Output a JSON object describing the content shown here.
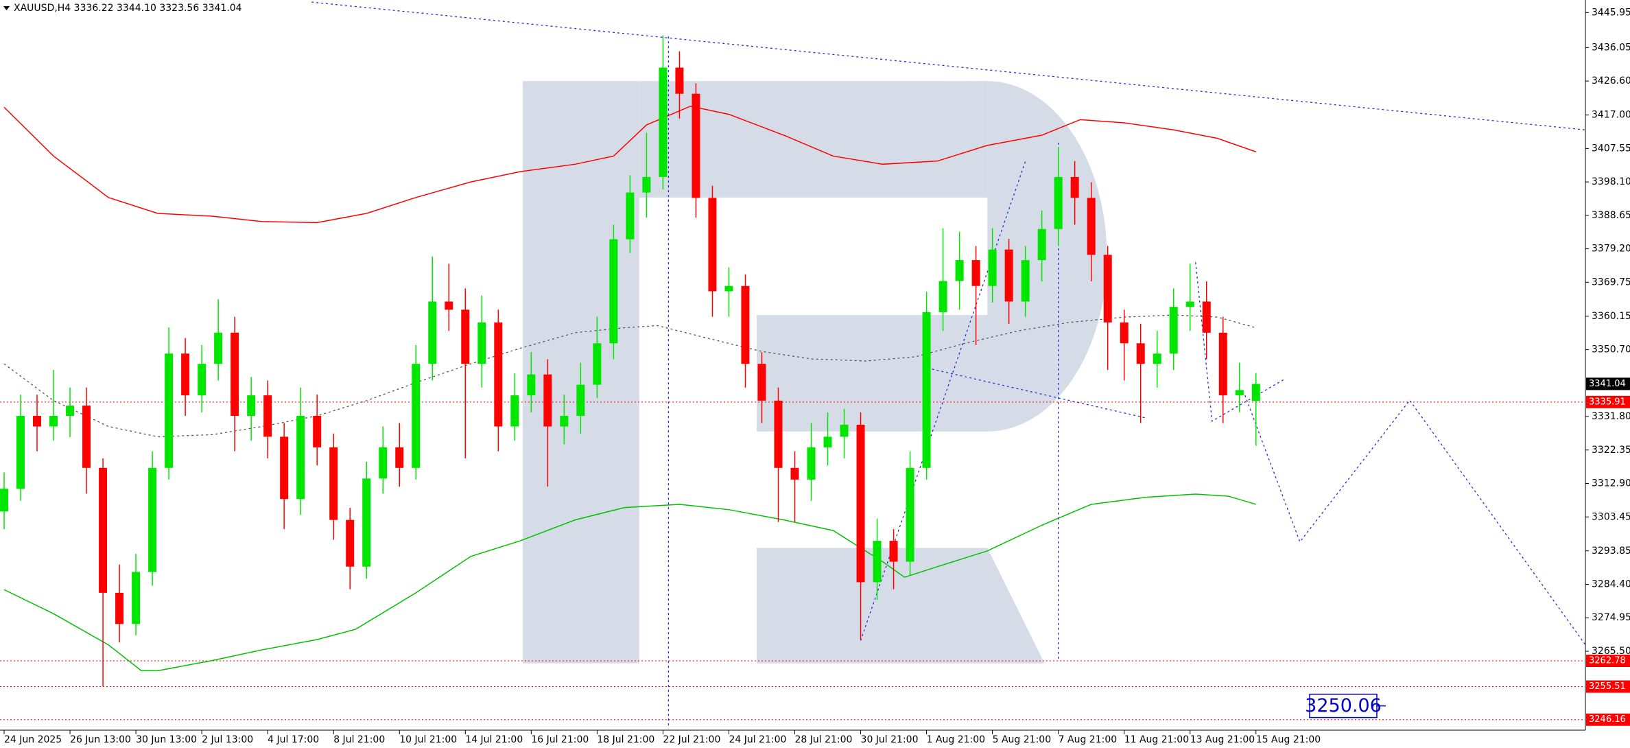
{
  "chart_data": {
    "type": "candlestick",
    "title": "XAUUSD,H4  3336.22 3344.10 3323.56 3341.04",
    "bull_color": "#00e600",
    "bear_color": "#ff0000",
    "xlim": [
      0,
      288
    ],
    "ylim": [
      3243.2,
      3449.5
    ],
    "xticks": [
      {
        "value": 0,
        "label": "24 Jun 2025"
      },
      {
        "value": 12,
        "label": "26 Jun 13:00"
      },
      {
        "value": 24,
        "label": "30 Jun 13:00"
      },
      {
        "value": 36,
        "label": "2 Jul 13:00"
      },
      {
        "value": 48,
        "label": "4 Jul 17:00"
      },
      {
        "value": 60,
        "label": "8 Jul 21:00"
      },
      {
        "value": 72,
        "label": "10 Jul 21:00"
      },
      {
        "value": 84,
        "label": "14 Jul 21:00"
      },
      {
        "value": 96,
        "label": "16 Jul 21:00"
      },
      {
        "value": 108,
        "label": "18 Jul 21:00"
      },
      {
        "value": 120,
        "label": "22 Jul 21:00"
      },
      {
        "value": 132,
        "label": "24 Jul 21:00"
      },
      {
        "value": 144,
        "label": "28 Jul 21:00"
      },
      {
        "value": 156,
        "label": "30 Jul 21:00"
      },
      {
        "value": 168,
        "label": "1 Aug 21:00"
      },
      {
        "value": 180,
        "label": "5 Aug 21:00"
      },
      {
        "value": 192,
        "label": "7 Aug 21:00"
      },
      {
        "value": 204,
        "label": "11 Aug 21:00"
      },
      {
        "value": 216,
        "label": "13 Aug 21:00"
      },
      {
        "value": 228,
        "label": "15 Aug 21:00"
      }
    ],
    "yticks": [
      3445.95,
      3436.05,
      {
        "value": 3426.6,
        "label": "3426.60"
      },
      {
        "value": 3417,
        "label": "3417.00"
      },
      3407.55,
      {
        "value": 3398.1,
        "label": "3398.10"
      },
      3388.65,
      {
        "value": 3379.2,
        "label": "3379.20"
      },
      3369.75,
      3360.15,
      {
        "value": 3350.7,
        "label": "3350.70"
      },
      {
        "value": 3331.8,
        "label": "3331.80"
      },
      3322.35,
      {
        "value": 3312.9,
        "label": "3312.90"
      },
      3303.45,
      3293.85,
      {
        "value": 3284.4,
        "label": "3284.40"
      },
      3274.95,
      {
        "value": 3265.5,
        "label": "3265.50"
      }
    ],
    "x": [
      0,
      3,
      6,
      9,
      12,
      15,
      18,
      21,
      24,
      27,
      30,
      33,
      36,
      39,
      42,
      45,
      48,
      51,
      54,
      57,
      60,
      63,
      66,
      69,
      72,
      75,
      78,
      81,
      84,
      87,
      90,
      93,
      96,
      99,
      102,
      105,
      108,
      111,
      114,
      117,
      120,
      123,
      126,
      129,
      132,
      135,
      138,
      141,
      144,
      147,
      150,
      153,
      156,
      159,
      162,
      165,
      168,
      171,
      174,
      177,
      180,
      183,
      186,
      189,
      192,
      195,
      198,
      201,
      204,
      207,
      210,
      213,
      216,
      219,
      222,
      225,
      228
    ],
    "open": [
      3305,
      3311.4,
      3332.0,
      3329.0,
      3332.0,
      3334.9,
      3317.3,
      3282.0,
      3273.2,
      3287.9,
      3317.3,
      3349.6,
      3337.8,
      3346.7,
      3355.5,
      3332.0,
      3337.8,
      3326.1,
      3308.5,
      3332.0,
      3323.1,
      3302.6,
      3289.4,
      3314.3,
      3323.1,
      3317.3,
      3346.7,
      3364.3,
      3362.0,
      3346.7,
      3358.4,
      3329.0,
      3337.8,
      3343.7,
      3329.0,
      3332.0,
      3340.8,
      3352.5,
      3381.9,
      3395.1,
      3399.5,
      3430.4,
      3423.0,
      3393.6,
      3367.2,
      3368.7,
      3346.7,
      3336.3,
      3317.3,
      3314.0,
      3323.1,
      3326.1,
      3329.5,
      3285.0,
      3296.7,
      3290.8,
      3317.3,
      3361.3,
      3370.1,
      3376.0,
      3368.7,
      3379.0,
      3364.3,
      3376.0,
      3384.8,
      3399.5,
      3393.6,
      3377.5,
      3358.4,
      3352.5,
      3346.7,
      3349.6,
      3362.8,
      3364.3,
      3355.5,
      3337.8,
      3336.22
    ],
    "high": [
      3316,
      3338,
      3338,
      3345,
      3340,
      3340,
      3320,
      3290,
      3293,
      3322,
      3357,
      3354,
      3352,
      3365,
      3360,
      3343,
      3342,
      3330,
      3340,
      3338,
      3327,
      3306,
      3319,
      3329,
      3330,
      3352,
      3377,
      3375,
      3368,
      3366,
      3362,
      3344,
      3350,
      3348,
      3338,
      3347,
      3360,
      3386,
      3400,
      3412,
      3439.5,
      3435,
      3426,
      3397,
      3374,
      3372,
      3350,
      3340,
      3322,
      3330,
      3333,
      3334,
      3333,
      3303,
      3300,
      3322,
      3367,
      3385,
      3384,
      3380,
      3385,
      3382,
      3380,
      3390,
      3408,
      3404,
      3398,
      3380,
      3362,
      3358,
      3356,
      3368,
      3375,
      3370,
      3360,
      3347,
      3344.1
    ],
    "low": [
      3300,
      3308,
      3322,
      3325,
      3326,
      3310,
      3255.6,
      3268,
      3270,
      3284,
      3314,
      3332,
      3333,
      3342,
      3322,
      3325,
      3320,
      3300,
      3304,
      3318,
      3297,
      3283,
      3286,
      3310,
      3312,
      3314,
      3342,
      3356,
      3320,
      3340,
      3322,
      3325,
      3333,
      3312,
      3324,
      3327,
      3337,
      3348,
      3378,
      3388,
      3396,
      3416,
      3388,
      3360,
      3360,
      3340,
      3330,
      3302,
      3302,
      3308,
      3318,
      3320,
      3268.8,
      3280,
      3283,
      3287,
      3314,
      3356,
      3362,
      3352,
      3364,
      3358,
      3360,
      3370,
      3380,
      3386,
      3370,
      3345,
      3342,
      3330,
      3340,
      3345,
      3356,
      3348,
      3330,
      3333,
      3323.56
    ],
    "close": [
      3311.4,
      3332.0,
      3329.0,
      3332.0,
      3334.9,
      3317.3,
      3282.0,
      3273.2,
      3287.9,
      3317.3,
      3349.6,
      3337.8,
      3346.7,
      3355.5,
      3332.0,
      3337.8,
      3326.1,
      3308.5,
      3332.0,
      3323.1,
      3302.6,
      3289.4,
      3314.3,
      3323.1,
      3317.3,
      3346.7,
      3364.3,
      3362.0,
      3346.7,
      3358.4,
      3329.0,
      3337.8,
      3343.7,
      3329.0,
      3332.0,
      3340.8,
      3352.5,
      3381.9,
      3395.1,
      3399.5,
      3430.4,
      3423.0,
      3393.6,
      3367.2,
      3368.7,
      3346.7,
      3336.3,
      3317.3,
      3314.0,
      3323.1,
      3326.1,
      3329.5,
      3285.0,
      3296.7,
      3290.8,
      3317.3,
      3361.3,
      3370.1,
      3376.0,
      3368.7,
      3379.0,
      3364.3,
      3376.0,
      3384.8,
      3399.5,
      3393.6,
      3377.5,
      3358.4,
      3352.5,
      3346.7,
      3349.6,
      3362.8,
      3364.3,
      3355.5,
      3337.8,
      3339.3,
      3341.04
    ],
    "lines": [
      {
        "color": "#ff0000",
        "style": "solid",
        "x": [
          0,
          9,
          19,
          28,
          38,
          47,
          57,
          66,
          75,
          85,
          94,
          104,
          111,
          117,
          125,
          132,
          142,
          151,
          160,
          170,
          179,
          189,
          196,
          204,
          213,
          221,
          228
        ],
        "values": [
          3419.2,
          3405.4,
          3393.7,
          3389.2,
          3388.4,
          3386.9,
          3386.6,
          3389.2,
          3393.7,
          3398.1,
          3401.0,
          3403.1,
          3405.4,
          3414.2,
          3419.5,
          3417.2,
          3411.3,
          3405.4,
          3403.1,
          3404.0,
          3408.4,
          3411.3,
          3415.7,
          3414.8,
          3412.8,
          3410.4,
          3406.6
        ]
      },
      {
        "color": "#00c000",
        "style": "solid",
        "x": [
          0,
          9,
          19,
          25,
          28,
          38,
          47,
          57,
          64,
          75,
          85,
          94,
          104,
          113,
          123,
          132,
          142,
          151,
          160,
          164,
          170,
          179,
          189,
          198,
          208,
          217,
          223,
          228
        ],
        "values": [
          3282.9,
          3276.1,
          3267.3,
          3260.0,
          3260.0,
          3262.9,
          3265.9,
          3268.8,
          3271.7,
          3282.0,
          3292.3,
          3296.7,
          3302.6,
          3306.1,
          3307.0,
          3305.5,
          3302.6,
          3299.6,
          3290.8,
          3286.4,
          3289.4,
          3293.8,
          3301.1,
          3307.0,
          3309.0,
          3309.9,
          3309.3,
          3307.0
        ]
      },
      {
        "color": "#555555",
        "style": "dotted",
        "x": [
          0,
          9,
          19,
          28,
          38,
          47,
          57,
          66,
          75,
          85,
          94,
          104,
          113,
          119,
          128,
          138,
          147,
          157,
          166,
          175,
          185,
          194,
          204,
          213,
          221,
          228
        ],
        "values": [
          3346.7,
          3336.3,
          3329.0,
          3326.1,
          3326.7,
          3329.0,
          3332.0,
          3336.3,
          3341.4,
          3346.7,
          3351.1,
          3355.5,
          3356.9,
          3357.5,
          3354.0,
          3350.2,
          3348.1,
          3347.5,
          3348.7,
          3352.5,
          3356.1,
          3358.4,
          3359.9,
          3360.5,
          3359.9,
          3356.9
        ]
      },
      {
        "color": "#2030d0",
        "style": "dotted",
        "x": [
          56,
          288
        ],
        "values": [
          3448.9,
          3412.8
        ]
      },
      {
        "color": "#2030d0",
        "style": "dotted",
        "x": [
          121,
          121
        ],
        "values": [
          3439.2,
          3243.7
        ]
      },
      {
        "color": "#2030d0",
        "style": "dotted",
        "x": [
          156,
          186
        ],
        "values": [
          3268.5,
          3403.9
        ]
      },
      {
        "color": "#2030d0",
        "style": "dotted",
        "x": [
          169,
          208
        ],
        "values": [
          3345.2,
          3331.4
        ]
      },
      {
        "color": "#2030d0",
        "style": "dotted",
        "x": [
          192,
          192
        ],
        "values": [
          3409.2,
          3262.6
        ]
      },
      {
        "color": "#2030d0",
        "style": "dotted",
        "x": [
          217,
          220,
          233
        ],
        "values": [
          3375.4,
          3330.5,
          3342.2
        ]
      },
      {
        "color": "#2030d0",
        "style": "dotted",
        "x": [
          226,
          236,
          256,
          288
        ],
        "values": [
          3337.8,
          3296.4,
          3336.4,
          3267.3
        ]
      }
    ],
    "hlines": [
      {
        "value": 3335.91,
        "color": "#ff0000"
      },
      {
        "value": 3262.78,
        "color": "#ff0000"
      },
      {
        "value": 3255.51,
        "color": "#ff0000"
      },
      {
        "value": 3246.16,
        "color": "#ff0000"
      }
    ],
    "last_price": 3341.04,
    "annotation": 3250.06
  }
}
